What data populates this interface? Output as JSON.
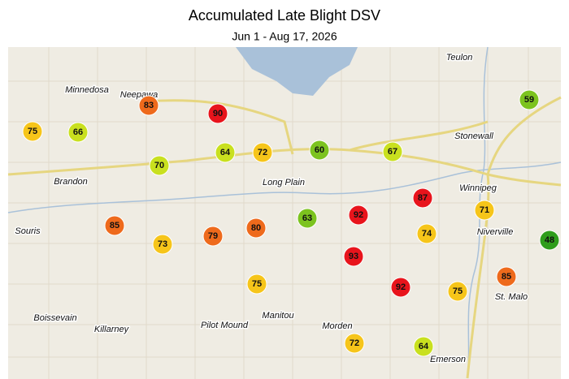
{
  "header": {
    "title": "Accumulated Late Blight DSV",
    "subtitle": "Jun 1 - Aug 17, 2026"
  },
  "towns": [
    "Teulon",
    "Minnedosa",
    "Neepawa",
    "Stonewall",
    "Winnipeg",
    "Brandon",
    "Long Plain",
    "Souris",
    "Niverville",
    "St. Malo",
    "Boissevain",
    "Manitou",
    "Pilot Mound",
    "Killarney",
    "Morden",
    "Emerson"
  ],
  "stations": [
    {
      "value": 83,
      "color": "#ee6a1c"
    },
    {
      "value": 90,
      "color": "#e8141c"
    },
    {
      "value": 75,
      "color": "#f6c51a"
    },
    {
      "value": 66,
      "color": "#c9e01f"
    },
    {
      "value": 64,
      "color": "#c9e01f"
    },
    {
      "value": 72,
      "color": "#f6c51a"
    },
    {
      "value": 60,
      "color": "#7cc31f"
    },
    {
      "value": 67,
      "color": "#c9e01f"
    },
    {
      "value": 70,
      "color": "#c9e01f"
    },
    {
      "value": 59,
      "color": "#7cc31f"
    },
    {
      "value": 87,
      "color": "#e8141c"
    },
    {
      "value": 71,
      "color": "#f6c51a"
    },
    {
      "value": 92,
      "color": "#e8141c"
    },
    {
      "value": 63,
      "color": "#7cc31f"
    },
    {
      "value": 85,
      "color": "#ee6a1c"
    },
    {
      "value": 79,
      "color": "#ee6a1c"
    },
    {
      "value": 80,
      "color": "#ee6a1c"
    },
    {
      "value": 73,
      "color": "#f6c51a"
    },
    {
      "value": 74,
      "color": "#f6c51a"
    },
    {
      "value": 48,
      "color": "#2f9d1c"
    },
    {
      "value": 93,
      "color": "#e8141c"
    },
    {
      "value": 85,
      "color": "#ee6a1c"
    },
    {
      "value": 75,
      "color": "#f6c51a"
    },
    {
      "value": 92,
      "color": "#e8141c"
    },
    {
      "value": 75,
      "color": "#f6c51a"
    },
    {
      "value": 72,
      "color": "#f6c51a"
    },
    {
      "value": 64,
      "color": "#c9e01f"
    }
  ]
}
